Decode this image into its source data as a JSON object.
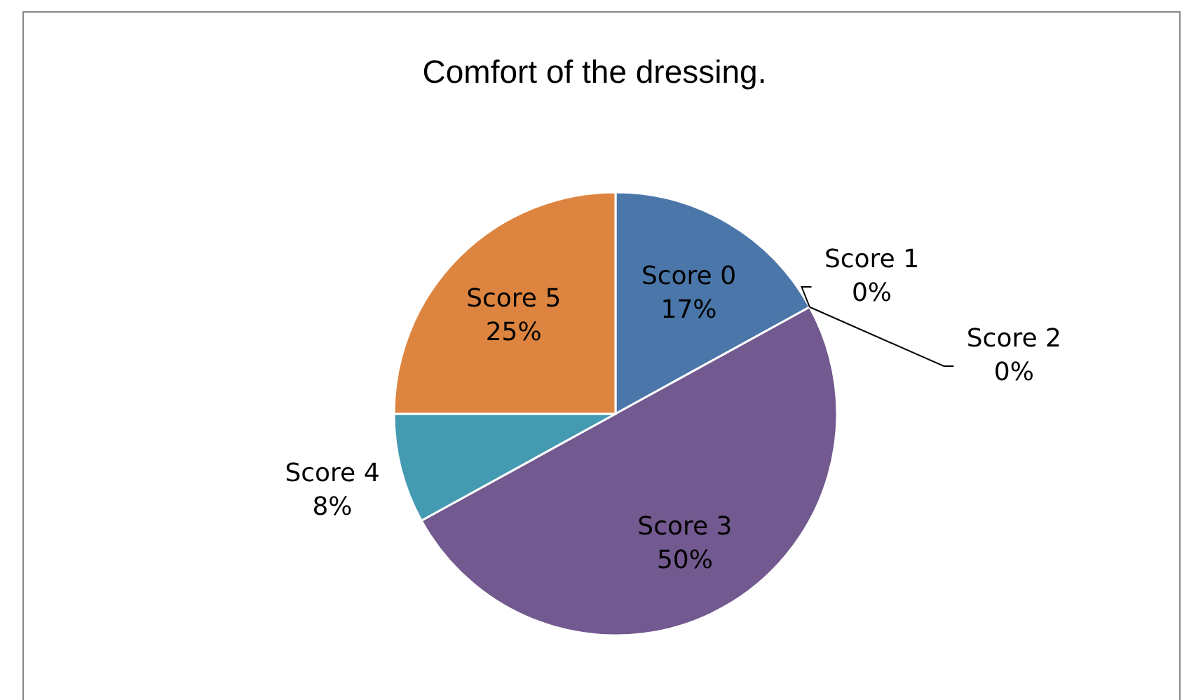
{
  "chart_data": {
    "type": "pie",
    "title": "Comfort of the dressing.",
    "categories": [
      "Score 0",
      "Score 1",
      "Score 2",
      "Score 3",
      "Score 4",
      "Score 5"
    ],
    "values": [
      17,
      0,
      0,
      50,
      8,
      25
    ],
    "value_labels": [
      "17%",
      "0%",
      "0%",
      "50%",
      "8%",
      "25%"
    ],
    "colors": [
      "#4a76a9",
      "#c0504d",
      "#9bbb59",
      "#72598f",
      "#439ab1",
      "#dd8540"
    ],
    "legend": false
  }
}
